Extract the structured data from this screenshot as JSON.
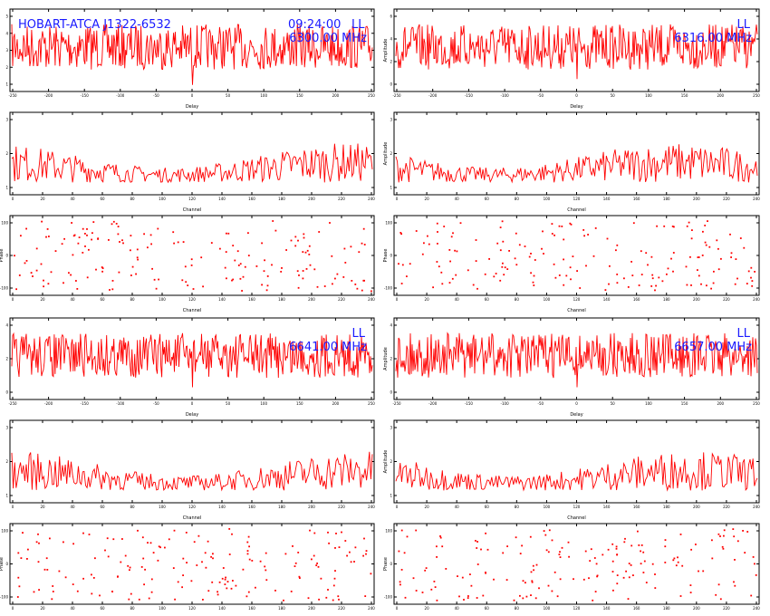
{
  "header": {
    "source": "HOBART-ATCA J1322-6532",
    "time": "09:24:00",
    "polarization": "LL"
  },
  "colors": {
    "trace": "#ff0000",
    "annotation": "#1a1aff",
    "frame": "#000000"
  },
  "chart_data": [
    {
      "type": "line",
      "band": "6300.00 MHz",
      "pol": "LL",
      "xlabel": "Delay",
      "ylabel": "",
      "x_ticks": [
        "-250",
        "-200",
        "-150",
        "-100",
        "-50",
        "0",
        "50",
        "100",
        "150",
        "200",
        "250"
      ],
      "y_ticks": [
        "5",
        "4",
        "3",
        "2",
        "1"
      ]
    },
    {
      "type": "line",
      "band": "6316.00 MHz",
      "pol": "LL",
      "xlabel": "Delay",
      "ylabel": "Amplitude",
      "x_ticks": [
        "-250",
        "-200",
        "-150",
        "-100",
        "-50",
        "0",
        "50",
        "100",
        "150",
        "200",
        "250"
      ],
      "y_ticks": [
        "6",
        "4",
        "2",
        "0"
      ]
    },
    {
      "type": "line",
      "band": "",
      "pol": "",
      "xlabel": "Channel",
      "ylabel": "",
      "x_ticks": [
        "0",
        "20",
        "40",
        "60",
        "80",
        "100",
        "120",
        "140",
        "160",
        "180",
        "200",
        "220",
        "240"
      ],
      "y_ticks": [
        "3",
        "2",
        "1"
      ]
    },
    {
      "type": "line",
      "band": "",
      "pol": "",
      "xlabel": "Channel",
      "ylabel": "Amplitude",
      "x_ticks": [
        "0",
        "20",
        "40",
        "60",
        "80",
        "100",
        "120",
        "140",
        "160",
        "180",
        "200",
        "220",
        "240"
      ],
      "y_ticks": [
        "3",
        "2",
        "1"
      ]
    },
    {
      "type": "scatter",
      "band": "",
      "pol": "",
      "xlabel": "Channel",
      "ylabel": "Phase",
      "x_ticks": [
        "0",
        "20",
        "40",
        "60",
        "80",
        "100",
        "120",
        "140",
        "160",
        "180",
        "200",
        "220",
        "240"
      ],
      "y_ticks": [
        "100",
        "0",
        "-100"
      ]
    },
    {
      "type": "scatter",
      "band": "",
      "pol": "",
      "xlabel": "Channel",
      "ylabel": "Phase",
      "x_ticks": [
        "0",
        "20",
        "40",
        "60",
        "80",
        "100",
        "120",
        "140",
        "160",
        "180",
        "200",
        "220",
        "240"
      ],
      "y_ticks": [
        "100",
        "0",
        "-100"
      ]
    },
    {
      "type": "line",
      "band": "6641.00 MHz",
      "pol": "LL",
      "xlabel": "Delay",
      "ylabel": "",
      "x_ticks": [
        "-250",
        "-200",
        "-150",
        "-100",
        "-50",
        "0",
        "50",
        "100",
        "150",
        "200",
        "250"
      ],
      "y_ticks": [
        "4",
        "2",
        "0"
      ]
    },
    {
      "type": "line",
      "band": "6657.00 MHz",
      "pol": "LL",
      "xlabel": "Delay",
      "ylabel": "Amplitude",
      "x_ticks": [
        "-250",
        "-200",
        "-150",
        "-100",
        "-50",
        "0",
        "50",
        "100",
        "150",
        "200",
        "250"
      ],
      "y_ticks": [
        "4",
        "2",
        "0"
      ]
    },
    {
      "type": "line",
      "band": "",
      "pol": "",
      "xlabel": "Channel",
      "ylabel": "",
      "x_ticks": [
        "0",
        "20",
        "40",
        "60",
        "80",
        "100",
        "120",
        "140",
        "160",
        "180",
        "200",
        "220",
        "240"
      ],
      "y_ticks": [
        "3",
        "2",
        "1"
      ]
    },
    {
      "type": "line",
      "band": "",
      "pol": "",
      "xlabel": "Channel",
      "ylabel": "Amplitude",
      "x_ticks": [
        "0",
        "20",
        "40",
        "60",
        "80",
        "100",
        "120",
        "140",
        "160",
        "180",
        "200",
        "220",
        "240"
      ],
      "y_ticks": [
        "3",
        "2",
        "1"
      ]
    },
    {
      "type": "scatter",
      "band": "",
      "pol": "",
      "xlabel": "Channel",
      "ylabel": "Phase",
      "x_ticks": [
        "0",
        "20",
        "40",
        "60",
        "80",
        "100",
        "120",
        "140",
        "160",
        "180",
        "200",
        "220",
        "240"
      ],
      "y_ticks": [
        "100",
        "0",
        "-100"
      ]
    },
    {
      "type": "scatter",
      "band": "",
      "pol": "",
      "xlabel": "Channel",
      "ylabel": "Phase",
      "x_ticks": [
        "0",
        "20",
        "40",
        "60",
        "80",
        "100",
        "120",
        "140",
        "160",
        "180",
        "200",
        "220",
        "240"
      ],
      "y_ticks": [
        "100",
        "0",
        "-100"
      ]
    }
  ]
}
